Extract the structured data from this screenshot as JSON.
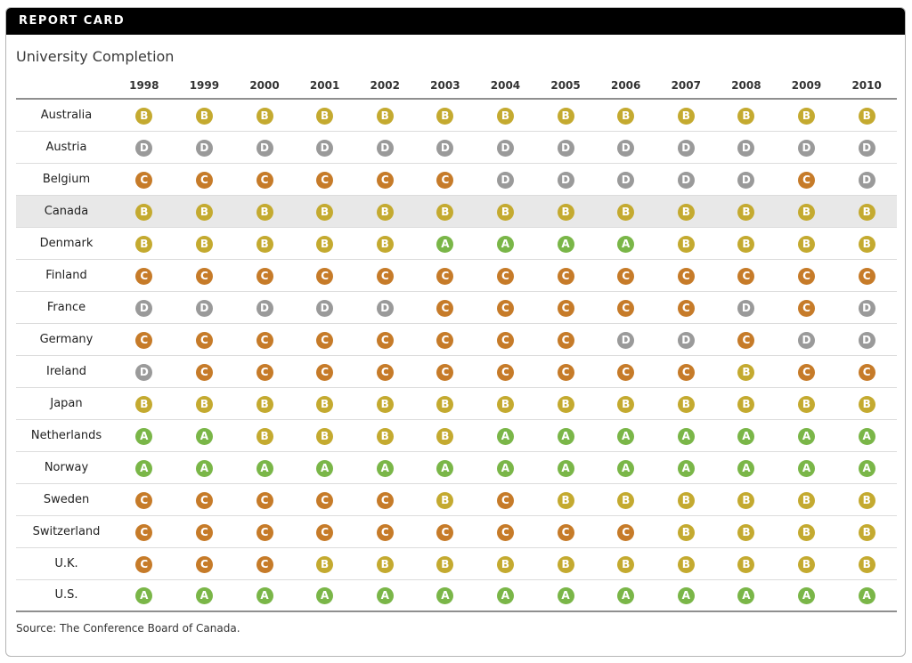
{
  "header": {
    "label": "REPORT CARD"
  },
  "title": "University Completion",
  "source": "Source: The Conference Board of Canada.",
  "grade_colors": {
    "A": "#7ab648",
    "B": "#c4aa30",
    "C": "#c67b29",
    "D": "#9a9a9a"
  },
  "highlighted_country": "Canada",
  "chart_data": {
    "type": "table",
    "title": "University Completion",
    "categories": [
      "1998",
      "1999",
      "2000",
      "2001",
      "2002",
      "2003",
      "2004",
      "2005",
      "2006",
      "2007",
      "2008",
      "2009",
      "2010"
    ],
    "rows": [
      {
        "country": "Australia",
        "grades": [
          "B",
          "B",
          "B",
          "B",
          "B",
          "B",
          "B",
          "B",
          "B",
          "B",
          "B",
          "B",
          "B"
        ]
      },
      {
        "country": "Austria",
        "grades": [
          "D",
          "D",
          "D",
          "D",
          "D",
          "D",
          "D",
          "D",
          "D",
          "D",
          "D",
          "D",
          "D"
        ]
      },
      {
        "country": "Belgium",
        "grades": [
          "C",
          "C",
          "C",
          "C",
          "C",
          "C",
          "D",
          "D",
          "D",
          "D",
          "D",
          "C",
          "D"
        ]
      },
      {
        "country": "Canada",
        "grades": [
          "B",
          "B",
          "B",
          "B",
          "B",
          "B",
          "B",
          "B",
          "B",
          "B",
          "B",
          "B",
          "B"
        ]
      },
      {
        "country": "Denmark",
        "grades": [
          "B",
          "B",
          "B",
          "B",
          "B",
          "A",
          "A",
          "A",
          "A",
          "B",
          "B",
          "B",
          "B"
        ]
      },
      {
        "country": "Finland",
        "grades": [
          "C",
          "C",
          "C",
          "C",
          "C",
          "C",
          "C",
          "C",
          "C",
          "C",
          "C",
          "C",
          "C"
        ]
      },
      {
        "country": "France",
        "grades": [
          "D",
          "D",
          "D",
          "D",
          "D",
          "C",
          "C",
          "C",
          "C",
          "C",
          "D",
          "C",
          "D"
        ]
      },
      {
        "country": "Germany",
        "grades": [
          "C",
          "C",
          "C",
          "C",
          "C",
          "C",
          "C",
          "C",
          "D",
          "D",
          "C",
          "D",
          "D"
        ]
      },
      {
        "country": "Ireland",
        "grades": [
          "D",
          "C",
          "C",
          "C",
          "C",
          "C",
          "C",
          "C",
          "C",
          "C",
          "B",
          "C",
          "C"
        ]
      },
      {
        "country": "Japan",
        "grades": [
          "B",
          "B",
          "B",
          "B",
          "B",
          "B",
          "B",
          "B",
          "B",
          "B",
          "B",
          "B",
          "B"
        ]
      },
      {
        "country": "Netherlands",
        "grades": [
          "A",
          "A",
          "B",
          "B",
          "B",
          "B",
          "A",
          "A",
          "A",
          "A",
          "A",
          "A",
          "A"
        ]
      },
      {
        "country": "Norway",
        "grades": [
          "A",
          "A",
          "A",
          "A",
          "A",
          "A",
          "A",
          "A",
          "A",
          "A",
          "A",
          "A",
          "A"
        ]
      },
      {
        "country": "Sweden",
        "grades": [
          "C",
          "C",
          "C",
          "C",
          "C",
          "B",
          "C",
          "B",
          "B",
          "B",
          "B",
          "B",
          "B"
        ]
      },
      {
        "country": "Switzerland",
        "grades": [
          "C",
          "C",
          "C",
          "C",
          "C",
          "C",
          "C",
          "C",
          "C",
          "B",
          "B",
          "B",
          "B"
        ]
      },
      {
        "country": "U.K.",
        "grades": [
          "C",
          "C",
          "C",
          "B",
          "B",
          "B",
          "B",
          "B",
          "B",
          "B",
          "B",
          "B",
          "B"
        ]
      },
      {
        "country": "U.S.",
        "grades": [
          "A",
          "A",
          "A",
          "A",
          "A",
          "A",
          "A",
          "A",
          "A",
          "A",
          "A",
          "A",
          "A"
        ]
      }
    ]
  }
}
